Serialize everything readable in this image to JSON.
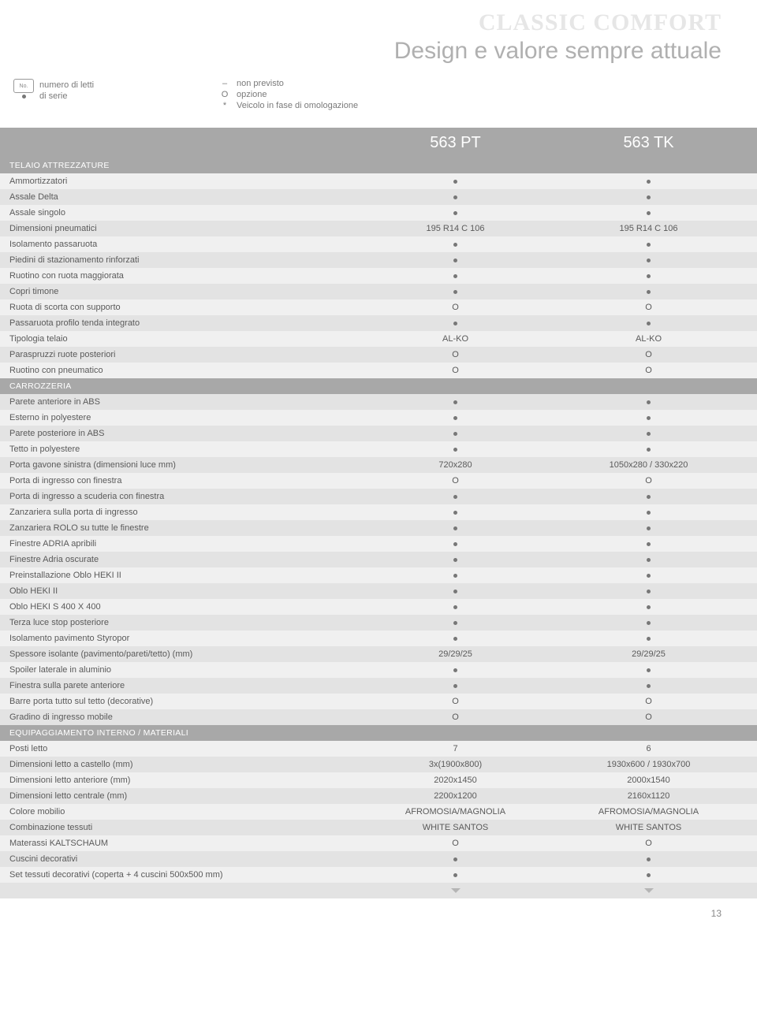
{
  "header": {
    "brand": "CLASSIC COMFORT",
    "subtitle": "Design e valore sempre attuale"
  },
  "legend": {
    "bed_icon_text": "No.",
    "beds_label": "numero di letti",
    "std_label": "di serie",
    "dash": "–",
    "o": "O",
    "star": "*",
    "not_provided": "non previsto",
    "option": "opzione",
    "homolog": "Veicolo in fase di omologazione"
  },
  "columns": [
    "563 PT",
    "563 TK"
  ],
  "dot": "●",
  "chevron": "▼",
  "sections": [
    {
      "title": "TELAIO ATTREZZATURE",
      "rows": [
        {
          "label": "Ammortizzatori",
          "v": [
            "dot",
            "dot"
          ]
        },
        {
          "label": "Assale Delta",
          "v": [
            "dot",
            "dot"
          ]
        },
        {
          "label": "Assale singolo",
          "v": [
            "dot",
            "dot"
          ]
        },
        {
          "label": "Dimensioni pneumatici",
          "v": [
            "195 R14 C 106",
            "195 R14 C 106"
          ]
        },
        {
          "label": "Isolamento passaruota",
          "v": [
            "dot",
            "dot"
          ]
        },
        {
          "label": "Piedini di stazionamento rinforzati",
          "v": [
            "dot",
            "dot"
          ]
        },
        {
          "label": "Ruotino con ruota maggiorata",
          "v": [
            "dot",
            "dot"
          ]
        },
        {
          "label": "Copri timone",
          "v": [
            "dot",
            "dot"
          ]
        },
        {
          "label": "Ruota di scorta con supporto",
          "v": [
            "O",
            "O"
          ]
        },
        {
          "label": "Passaruota profilo tenda integrato",
          "v": [
            "dot",
            "dot"
          ]
        },
        {
          "label": "Tipologia telaio",
          "v": [
            "AL-KO",
            "AL-KO"
          ]
        },
        {
          "label": "Paraspruzzi ruote posteriori",
          "v": [
            "O",
            "O"
          ]
        },
        {
          "label": "Ruotino con pneumatico",
          "v": [
            "O",
            "O"
          ]
        }
      ]
    },
    {
      "title": "CARROZZERIA",
      "rows": [
        {
          "label": "Parete anteriore in ABS",
          "v": [
            "dot",
            "dot"
          ]
        },
        {
          "label": "Esterno in polyestere",
          "v": [
            "dot",
            "dot"
          ]
        },
        {
          "label": "Parete posteriore in ABS",
          "v": [
            "dot",
            "dot"
          ]
        },
        {
          "label": "Tetto in polyestere",
          "v": [
            "dot",
            "dot"
          ]
        },
        {
          "label": "Porta gavone sinistra (dimensioni luce mm)",
          "v": [
            "720x280",
            "1050x280 / 330x220"
          ]
        },
        {
          "label": "Porta di ingresso con finestra",
          "v": [
            "O",
            "O"
          ]
        },
        {
          "label": "Porta di ingresso a scuderia con finestra",
          "v": [
            "dot",
            "dot"
          ]
        },
        {
          "label": "Zanzariera sulla porta di ingresso",
          "v": [
            "dot",
            "dot"
          ]
        },
        {
          "label": "Zanzariera ROLO su tutte le finestre",
          "v": [
            "dot",
            "dot"
          ]
        },
        {
          "label": "Finestre ADRIA apribili",
          "v": [
            "dot",
            "dot"
          ]
        },
        {
          "label": "Finestre Adria oscurate",
          "v": [
            "dot",
            "dot"
          ]
        },
        {
          "label": "Preinstallazione Oblo HEKI II",
          "v": [
            "dot",
            "dot"
          ]
        },
        {
          "label": "Oblo HEKI II",
          "v": [
            "dot",
            "dot"
          ]
        },
        {
          "label": "Oblo HEKI S 400 X 400",
          "v": [
            "dot",
            "dot"
          ]
        },
        {
          "label": "Terza luce stop posteriore",
          "v": [
            "dot",
            "dot"
          ]
        },
        {
          "label": "Isolamento pavimento Styropor",
          "v": [
            "dot",
            "dot"
          ]
        },
        {
          "label": "Spessore isolante (pavimento/pareti/tetto) (mm)",
          "v": [
            "29/29/25",
            "29/29/25"
          ]
        },
        {
          "label": "Spoiler laterale in aluminio",
          "v": [
            "dot",
            "dot"
          ]
        },
        {
          "label": "Finestra sulla parete anteriore",
          "v": [
            "dot",
            "dot"
          ]
        },
        {
          "label": "Barre porta tutto sul tetto (decorative)",
          "v": [
            "O",
            "O"
          ]
        },
        {
          "label": "Gradino di ingresso mobile",
          "v": [
            "O",
            "O"
          ]
        }
      ]
    },
    {
      "title": "EQUIPAGGIAMENTO INTERNO / MATERIALI",
      "rows": [
        {
          "label": "Posti letto",
          "v": [
            "7",
            "6"
          ]
        },
        {
          "label": "Dimensioni letto a castello (mm)",
          "v": [
            "3x(1900x800)",
            "1930x600 / 1930x700"
          ]
        },
        {
          "label": "Dimensioni letto anteriore (mm)",
          "v": [
            "2020x1450",
            "2000x1540"
          ]
        },
        {
          "label": "Dimensioni letto centrale (mm)",
          "v": [
            "2200x1200",
            "2160x1120"
          ]
        },
        {
          "label": "Colore mobilio",
          "v": [
            "AFROMOSIA/MAGNOLIA",
            "AFROMOSIA/MAGNOLIA"
          ]
        },
        {
          "label": "Combinazione tessuti",
          "v": [
            "WHITE SANTOS",
            "WHITE SANTOS"
          ]
        },
        {
          "label": "Materassi KALTSCHAUM",
          "v": [
            "O",
            "O"
          ]
        },
        {
          "label": "Cuscini decorativi",
          "v": [
            "dot",
            "dot"
          ]
        },
        {
          "label": "Set tessuti decorativi (coperta + 4 cuscini 500x500 mm)",
          "v": [
            "dot",
            "dot"
          ]
        }
      ]
    }
  ],
  "footer_row": {
    "label": "",
    "v": [
      "chev",
      "chev"
    ]
  },
  "page_number": "13",
  "colors": {
    "section_bg": "#a8a8a8",
    "row_odd": "#f0f0f0",
    "row_even": "#e3e3e3",
    "text": "#5a5a5a",
    "brand": "#e6e6e6",
    "subtitle": "#b0b0b0"
  }
}
